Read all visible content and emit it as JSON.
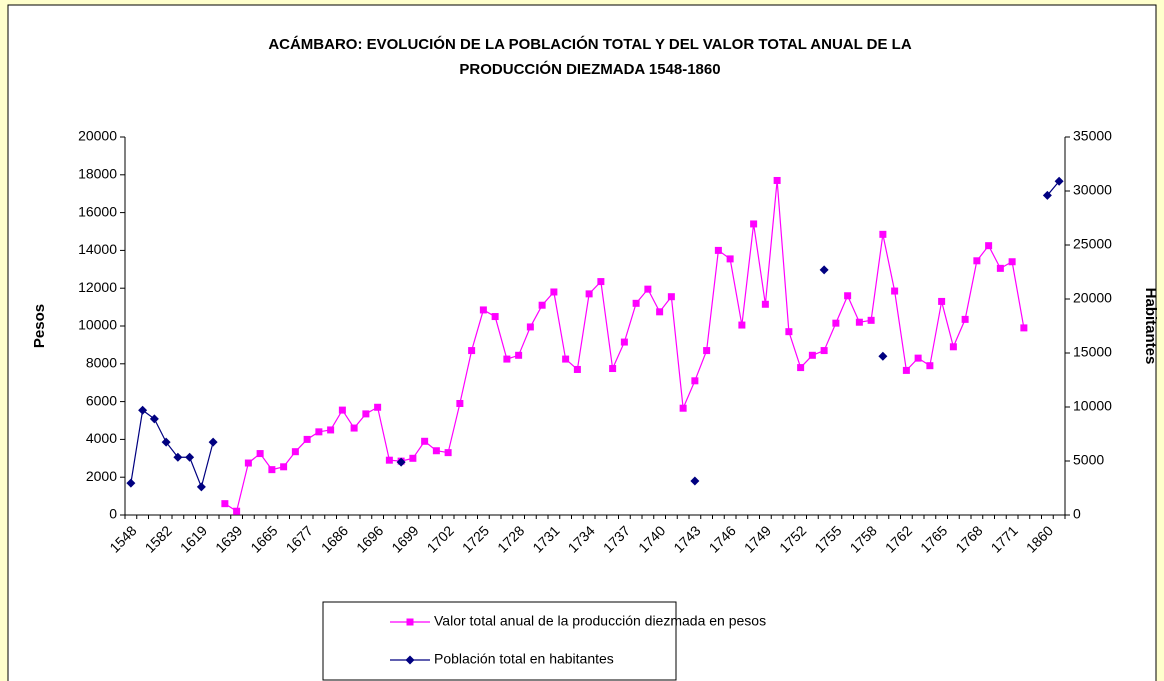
{
  "chart_data": {
    "type": "line",
    "title": [
      "ACÁMBARO: EVOLUCIÓN DE LA POBLACIÓN TOTAL Y DEL VALOR TOTAL ANUAL DE LA",
      "PRODUCCIÓN DIEZMADA 1548-1860"
    ],
    "y_label": "Pesos",
    "y2_label": "Habitantes",
    "categories": [
      "1548",
      null,
      null,
      "1582",
      null,
      null,
      "1619",
      null,
      null,
      "1639",
      null,
      null,
      "1665",
      null,
      null,
      "1677",
      null,
      null,
      "1686",
      null,
      null,
      "1696",
      null,
      null,
      "1699",
      null,
      null,
      "1702",
      null,
      null,
      "1725",
      null,
      null,
      "1728",
      null,
      null,
      "1731",
      null,
      null,
      "1734",
      null,
      null,
      "1737",
      null,
      null,
      "1740",
      null,
      null,
      "1743",
      null,
      null,
      "1746",
      null,
      null,
      "1749",
      null,
      null,
      "1752",
      null,
      null,
      "1755",
      null,
      null,
      "1758",
      null,
      null,
      "1762",
      null,
      null,
      "1765",
      null,
      null,
      "1768",
      null,
      null,
      "1771",
      null,
      null,
      "1860",
      null
    ],
    "series": [
      {
        "name": "Valor total anual de la producción diezmada en pesos",
        "color": "#ff00ff",
        "marker": "square",
        "axis": "y",
        "values": [
          null,
          null,
          null,
          null,
          null,
          null,
          null,
          null,
          600,
          200,
          2750,
          3250,
          2400,
          2550,
          3350,
          4000,
          4400,
          4500,
          5550,
          4600,
          5350,
          5700,
          2900,
          2850,
          3000,
          3900,
          3400,
          3300,
          5900,
          8700,
          10850,
          10500,
          8250,
          8450,
          9950,
          11100,
          11800,
          8250,
          7700,
          11700,
          12350,
          7750,
          9150,
          11200,
          11950,
          10750,
          11550,
          5650,
          7100,
          8700,
          14000,
          13550,
          10050,
          15400,
          11150,
          17700,
          9700,
          7800,
          8450,
          8700,
          10150,
          11600,
          10200,
          10300,
          14850,
          11850,
          7650,
          8300,
          7900,
          11300,
          8900,
          10350,
          13450,
          14250,
          13050,
          13400,
          9900,
          null,
          null,
          null
        ]
      },
      {
        "name": "Población total en habitantes",
        "color": "#000080",
        "marker": "diamond",
        "axis": "y2",
        "values": [
          2950,
          9700,
          8900,
          6750,
          5350,
          5350,
          2600,
          6750,
          null,
          null,
          null,
          null,
          null,
          null,
          null,
          null,
          null,
          null,
          null,
          null,
          null,
          null,
          null,
          4900,
          null,
          null,
          null,
          null,
          null,
          null,
          null,
          null,
          null,
          null,
          null,
          null,
          null,
          null,
          null,
          null,
          null,
          null,
          null,
          null,
          null,
          null,
          null,
          null,
          3150,
          null,
          null,
          null,
          null,
          null,
          null,
          null,
          null,
          null,
          null,
          22700,
          null,
          null,
          null,
          null,
          14700,
          null,
          null,
          null,
          null,
          null,
          null,
          null,
          null,
          null,
          null,
          null,
          null,
          null,
          29600,
          30900
        ]
      }
    ],
    "ylim": [
      0,
      20000
    ],
    "yticks": [
      0,
      2000,
      4000,
      6000,
      8000,
      10000,
      12000,
      14000,
      16000,
      18000,
      20000
    ],
    "y2lim": [
      0,
      35000
    ],
    "y2ticks": [
      0,
      5000,
      10000,
      15000,
      20000,
      25000,
      30000,
      35000
    ],
    "legend": "bottom"
  }
}
